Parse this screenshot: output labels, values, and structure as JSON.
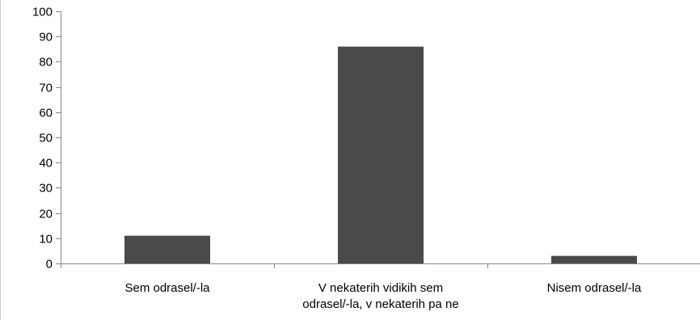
{
  "chart_data": {
    "type": "bar",
    "title": "",
    "xlabel": "",
    "ylabel": "",
    "categories": [
      [
        "Sem odrasel/-la"
      ],
      [
        "V nekaterih vidikih sem",
        "odrasel/-la, v nekaterih pa ne"
      ],
      [
        "Nisem odrasel/-la"
      ]
    ],
    "values": [
      11,
      86,
      3
    ],
    "ylim": [
      0,
      100
    ],
    "yticks": [
      0,
      10,
      20,
      30,
      40,
      50,
      60,
      70,
      80,
      90,
      100
    ],
    "grid": false,
    "legend": "none",
    "bar_color": "#4a4a4a",
    "axis_color": "#868686"
  }
}
